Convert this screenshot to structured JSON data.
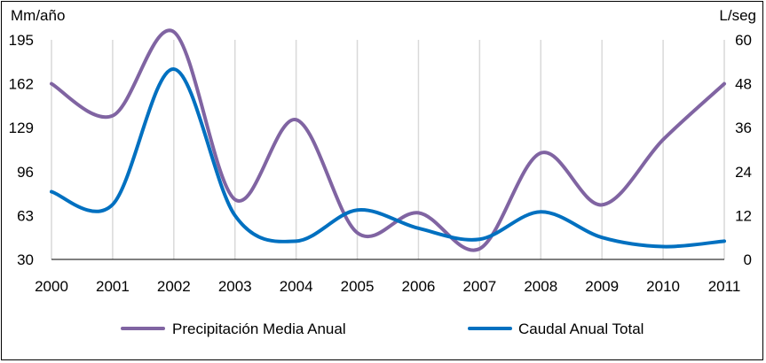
{
  "chart_data": {
    "type": "line",
    "title": "",
    "x": [
      "2000",
      "2001",
      "2002",
      "2003",
      "2004",
      "2005",
      "2006",
      "2007",
      "2008",
      "2009",
      "2010",
      "2011"
    ],
    "y_left": {
      "label": "Mm/año",
      "range": [
        30,
        195
      ],
      "ticks": [
        "195",
        "162",
        "129",
        "96",
        "63",
        "30"
      ],
      "tick_values": [
        195,
        162,
        129,
        96,
        63,
        30
      ]
    },
    "y_right": {
      "label": "L/seg",
      "range": [
        0,
        60
      ],
      "ticks": [
        "60",
        "48",
        "36",
        "24",
        "12",
        "0"
      ],
      "tick_values": [
        60,
        48,
        36,
        24,
        12,
        0
      ]
    },
    "series": [
      {
        "name": "Precipitación Media Anual",
        "axis": "left",
        "color": "#8064a2",
        "values": [
          162,
          138,
          201,
          75,
          135,
          50,
          65,
          38,
          110,
          71,
          120,
          162
        ]
      },
      {
        "name": "Caudal Anual Total",
        "axis": "right",
        "color": "#0070c0",
        "values": [
          18.5,
          15,
          52,
          12,
          5,
          13.5,
          8.5,
          5.5,
          13,
          6,
          3.5,
          5
        ]
      }
    ],
    "grid": "vertical",
    "legend": "bottom",
    "smooth": true
  }
}
